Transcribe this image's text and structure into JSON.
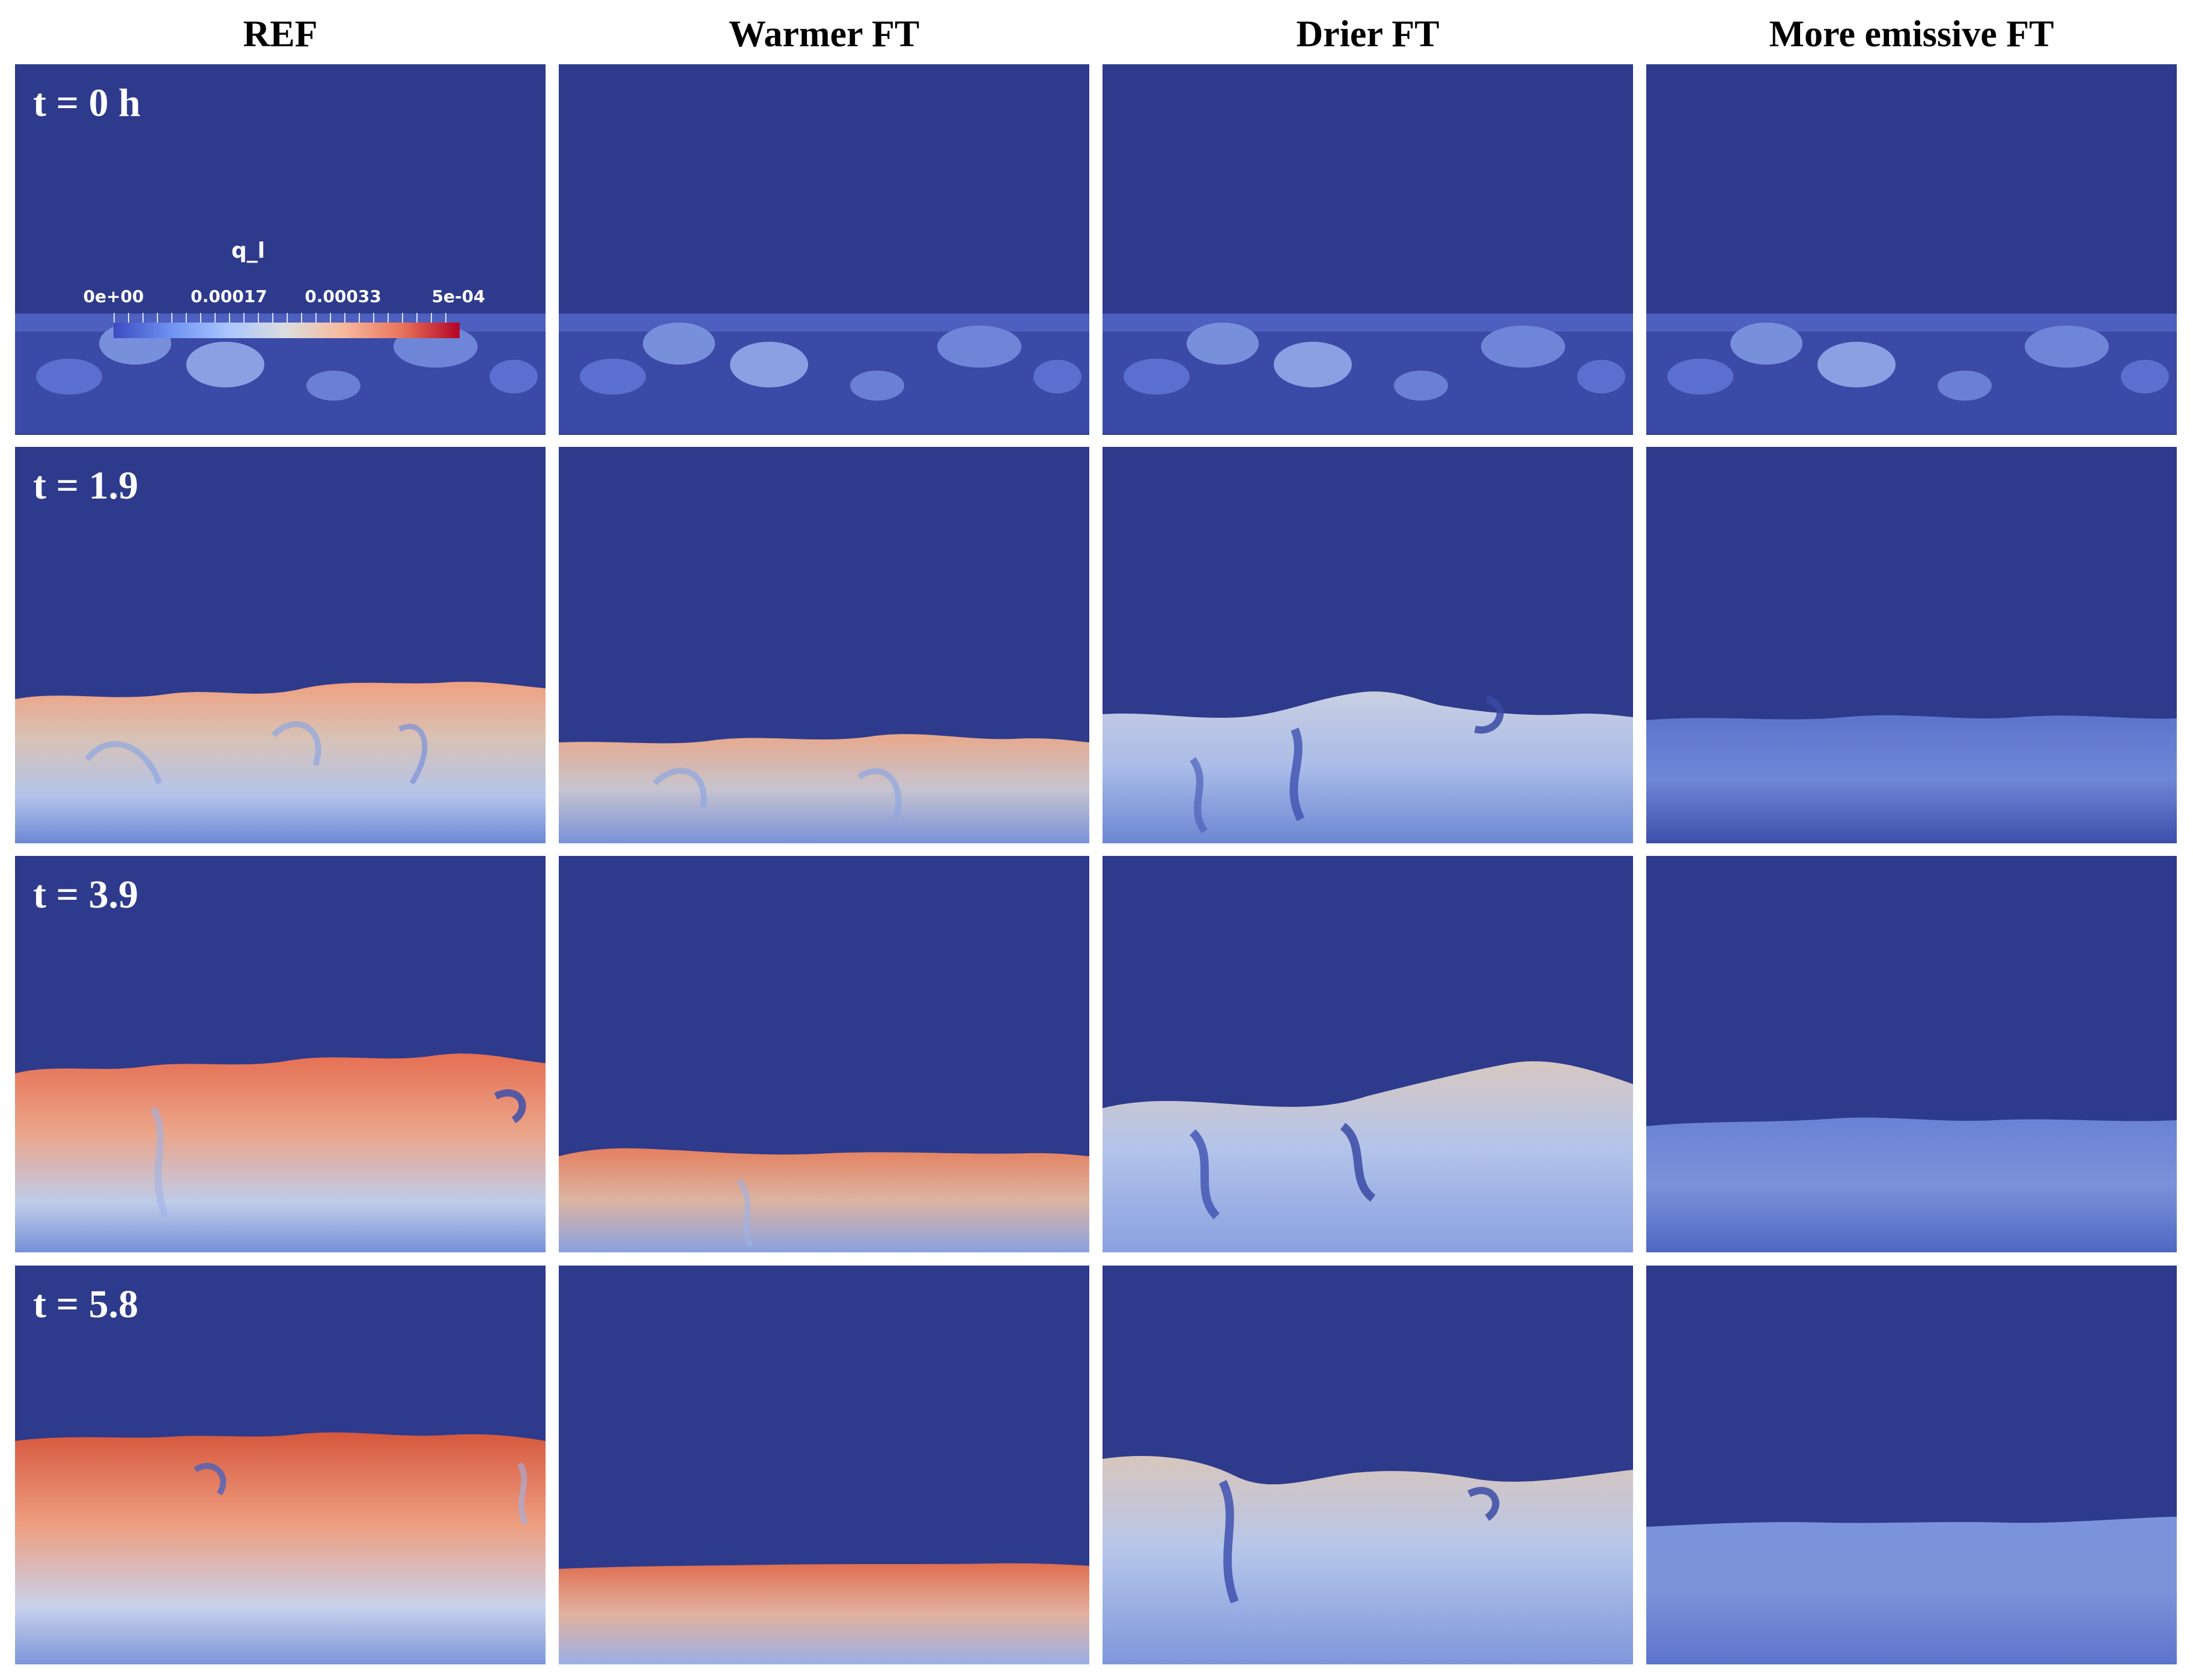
{
  "columns": [
    "REF",
    "Warmer FT",
    "Drier FT",
    "More emissive FT"
  ],
  "time_labels": [
    "t = 0 h",
    "t = 1.9",
    "t = 3.9",
    "t = 5.8"
  ],
  "colorbar": {
    "title": "q_l",
    "ticks": [
      "0e+00",
      "0.00017",
      "0.00033",
      "5e-04"
    ]
  },
  "colors": {
    "free_troposphere": "#2e3a8c",
    "colormap_low": "#3b4cc0",
    "colormap_mid": "#dddddd",
    "colormap_high": "#b40426"
  }
}
